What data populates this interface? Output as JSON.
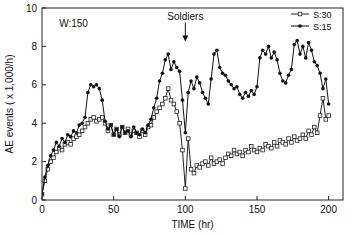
{
  "chart_data": {
    "type": "line",
    "x_label": "TIME (hr)",
    "y_label": "AE events ( x 1,000/h)",
    "annotations": [
      {
        "text": "W:150",
        "x": 22,
        "y": 9
      },
      {
        "text": "Soldiers",
        "x": 100,
        "y": 9.4
      }
    ],
    "x": [
      0,
      2,
      4,
      6,
      8,
      10,
      12,
      14,
      16,
      18,
      20,
      22,
      24,
      26,
      28,
      30,
      32,
      34,
      36,
      38,
      40,
      42,
      44,
      46,
      48,
      50,
      52,
      54,
      56,
      58,
      60,
      62,
      64,
      66,
      68,
      70,
      72,
      74,
      76,
      78,
      80,
      82,
      84,
      86,
      88,
      90,
      92,
      94,
      96,
      98,
      100,
      102,
      104,
      106,
      108,
      110,
      112,
      114,
      116,
      118,
      120,
      122,
      124,
      126,
      128,
      130,
      132,
      134,
      136,
      138,
      140,
      142,
      144,
      146,
      148,
      150,
      152,
      154,
      156,
      158,
      160,
      162,
      164,
      166,
      168,
      170,
      172,
      174,
      176,
      178,
      180,
      182,
      184,
      186,
      188,
      190,
      192,
      194,
      196,
      198,
      200
    ],
    "series": [
      {
        "name": "S:30",
        "color": "#222222",
        "marker": "square",
        "values": [
          0.3,
          1.0,
          1.6,
          2.0,
          2.2,
          2.5,
          2.7,
          2.6,
          2.9,
          3.0,
          2.9,
          3.2,
          3.3,
          3.4,
          3.6,
          3.8,
          4.0,
          4.2,
          4.3,
          4.1,
          4.2,
          4.3,
          4.0,
          3.6,
          3.9,
          3.4,
          3.7,
          3.4,
          3.8,
          3.5,
          3.7,
          3.4,
          3.6,
          3.5,
          3.3,
          3.6,
          3.4,
          3.8,
          3.9,
          4.3,
          4.6,
          4.8,
          5.0,
          5.3,
          5.8,
          5.2,
          5.0,
          4.6,
          4.0,
          2.6,
          0.6,
          3.2,
          1.6,
          1.4,
          1.8,
          1.7,
          1.9,
          2.0,
          1.8,
          2.2,
          1.9,
          2.0,
          2.1,
          1.9,
          2.2,
          2.4,
          2.3,
          2.6,
          2.4,
          2.5,
          2.3,
          2.6,
          2.5,
          2.8,
          2.6,
          2.5,
          2.7,
          2.6,
          2.9,
          2.8,
          2.7,
          3.0,
          2.8,
          3.1,
          3.0,
          2.9,
          3.2,
          3.0,
          3.3,
          3.1,
          3.2,
          3.4,
          3.2,
          3.6,
          3.4,
          3.8,
          3.5,
          4.4,
          5.3,
          4.2,
          4.4
        ]
      },
      {
        "name": "S:15",
        "color": "#111111",
        "marker": "circle",
        "values": [
          0.3,
          1.2,
          1.8,
          2.3,
          2.6,
          3.0,
          2.8,
          3.2,
          3.0,
          3.4,
          3.3,
          3.6,
          3.5,
          3.9,
          4.0,
          4.3,
          5.6,
          6.0,
          5.9,
          6.0,
          5.8,
          5.2,
          4.1,
          3.7,
          3.9,
          3.4,
          3.7,
          3.3,
          3.8,
          3.5,
          3.6,
          3.3,
          3.8,
          3.5,
          3.4,
          3.7,
          3.5,
          3.9,
          4.2,
          4.8,
          5.3,
          6.2,
          6.6,
          7.3,
          7.6,
          6.8,
          7.2,
          6.9,
          6.7,
          5.2,
          3.5,
          5.6,
          6.2,
          5.8,
          6.4,
          6.1,
          5.6,
          5.3,
          5.0,
          6.3,
          7.6,
          7.8,
          6.9,
          6.6,
          6.5,
          6.2,
          6.0,
          5.8,
          5.9,
          5.5,
          5.3,
          5.6,
          5.4,
          5.7,
          5.5,
          5.9,
          7.4,
          7.8,
          7.6,
          8.0,
          7.4,
          7.7,
          7.3,
          6.6,
          6.2,
          6.1,
          6.5,
          6.8,
          8.1,
          8.3,
          7.6,
          8.0,
          7.4,
          8.2,
          7.8,
          7.2,
          7.0,
          6.6,
          5.8,
          6.3,
          5.0
        ]
      }
    ],
    "xlim": [
      0,
      210
    ],
    "xticks": [
      0,
      50,
      100,
      150,
      200
    ],
    "ylim": [
      0,
      10
    ],
    "yticks": [
      0,
      2,
      4,
      6,
      8,
      10
    ],
    "legend": "upper right"
  }
}
